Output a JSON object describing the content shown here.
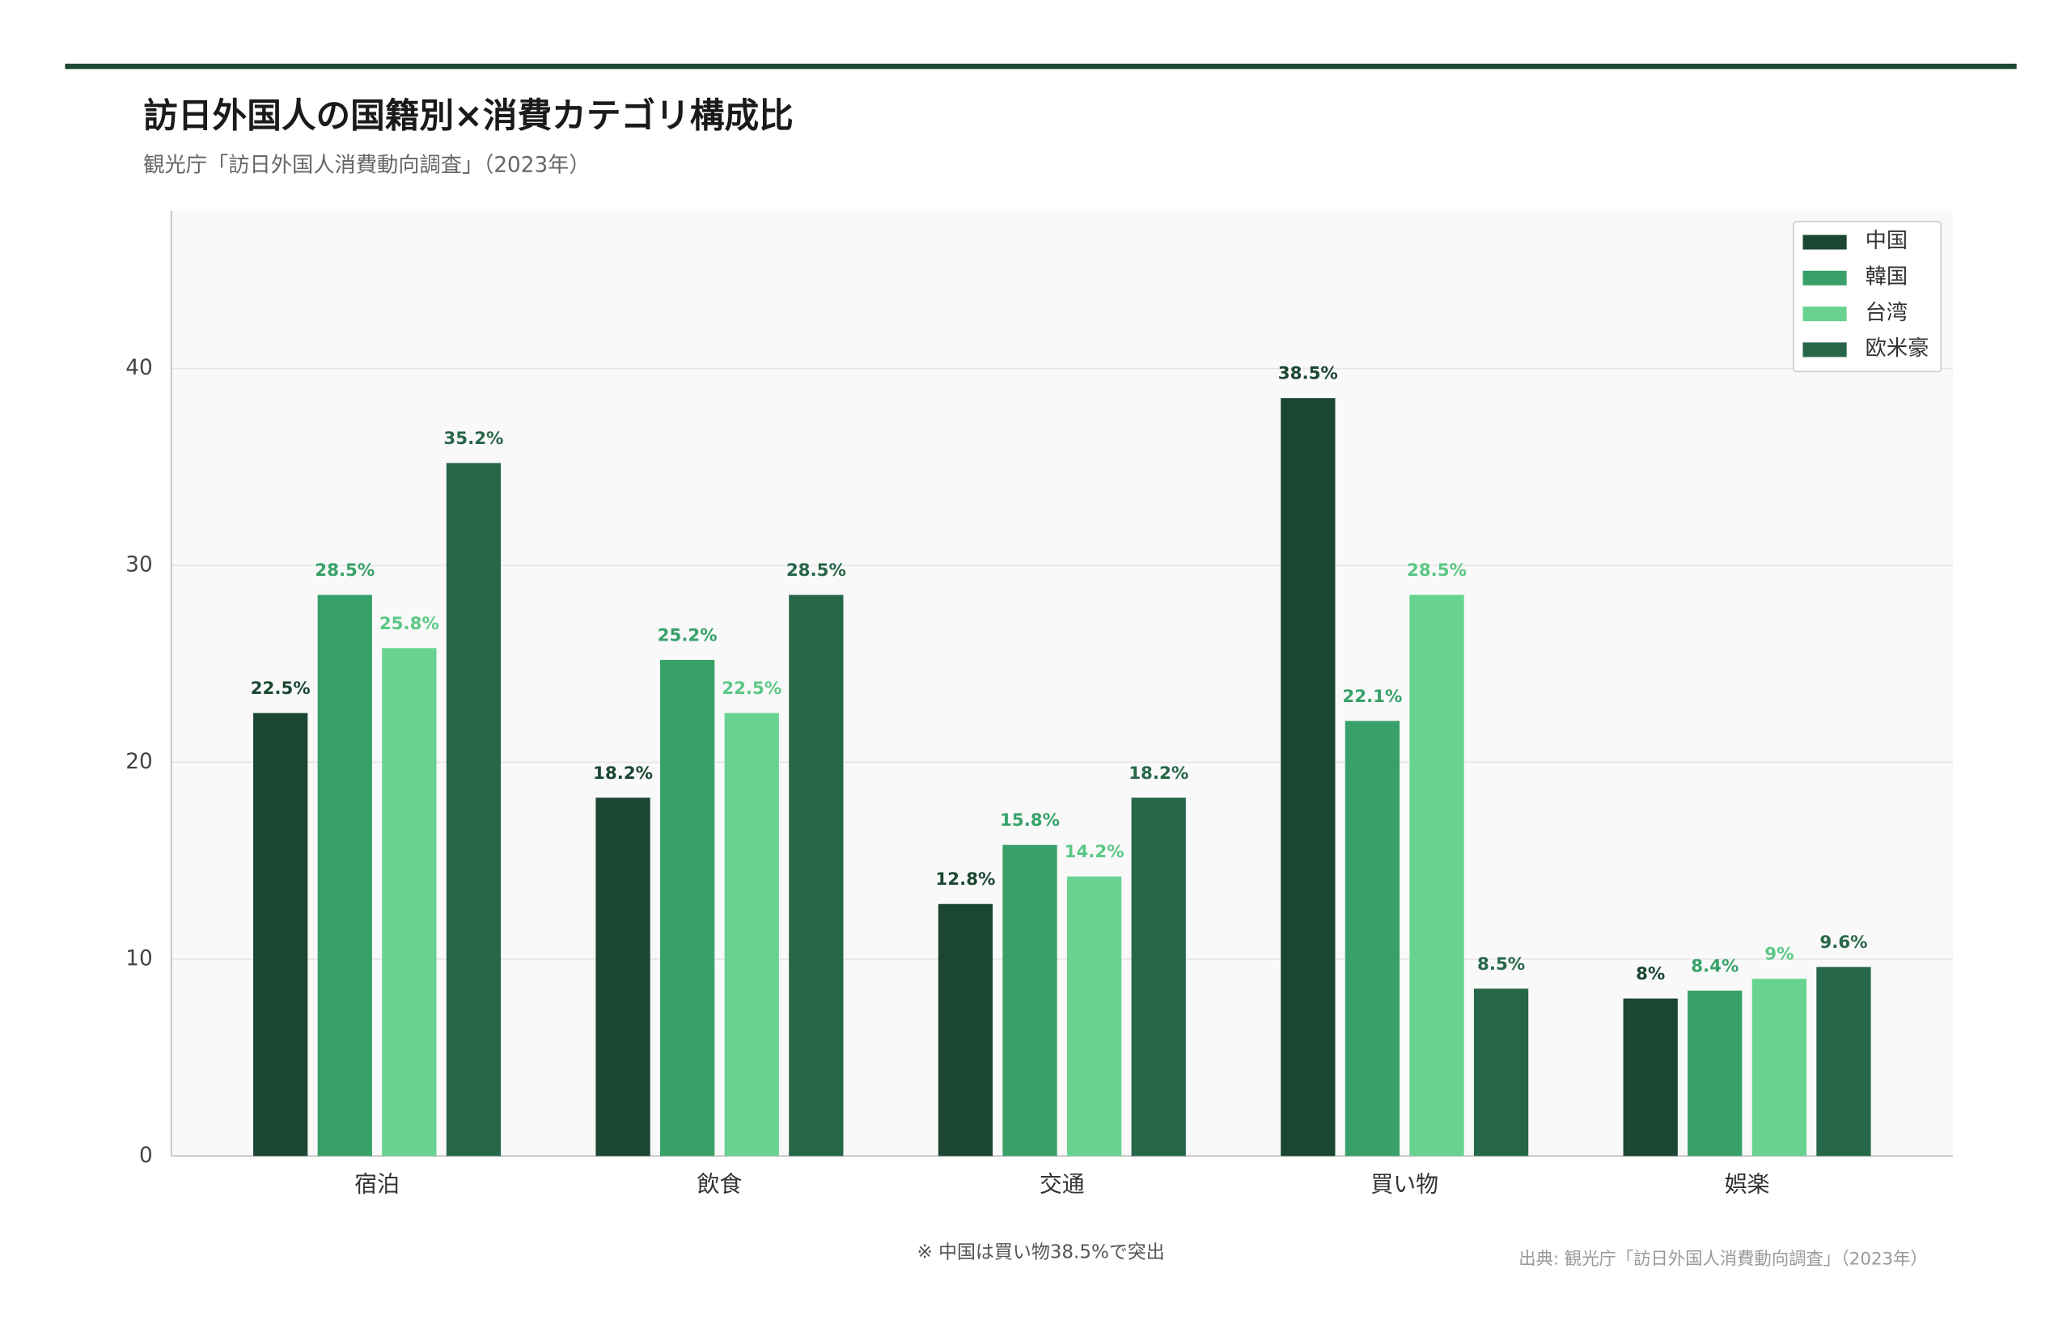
{
  "chart_data": {
    "type": "bar",
    "title": "訪日外国人の国籍別×消費カテゴリ構成比",
    "subtitle": "観光庁「訪日外国人消費動向調査」（2023年）",
    "annotation": "※ 中国は買い物38.5%で突出",
    "source": "出典: 観光庁「訪日外国人消費動向調査」（2023年）",
    "categories": [
      "宿泊",
      "飲食",
      "交通",
      "買い物",
      "娯楽"
    ],
    "series": [
      {
        "name": "中国",
        "color": "#1b4732",
        "values": [
          22.5,
          18.2,
          12.8,
          38.5,
          8
        ],
        "value_labels": [
          "22.5%",
          "18.2%",
          "12.8%",
          "38.5%",
          "8%"
        ]
      },
      {
        "name": "韓国",
        "color": "#38a169",
        "values": [
          28.5,
          25.2,
          15.8,
          22.1,
          8.4
        ],
        "value_labels": [
          "28.5%",
          "25.2%",
          "15.8%",
          "22.1%",
          "8.4%"
        ]
      },
      {
        "name": "台湾",
        "color": "#68d391",
        "values": [
          25.8,
          22.5,
          14.2,
          28.5,
          9
        ],
        "value_labels": [
          "25.8%",
          "22.5%",
          "14.2%",
          "28.5%",
          "9%"
        ]
      },
      {
        "name": "欧米豪",
        "color": "#276749",
        "values": [
          35.2,
          28.5,
          18.2,
          8.5,
          9.6
        ],
        "value_labels": [
          "35.2%",
          "28.5%",
          "18.2%",
          "8.5%",
          "9.6%"
        ]
      }
    ],
    "ylim": [
      0,
      48
    ],
    "yticks": [
      0,
      10,
      20,
      30,
      40
    ],
    "grid": true,
    "legend": "top-right"
  }
}
